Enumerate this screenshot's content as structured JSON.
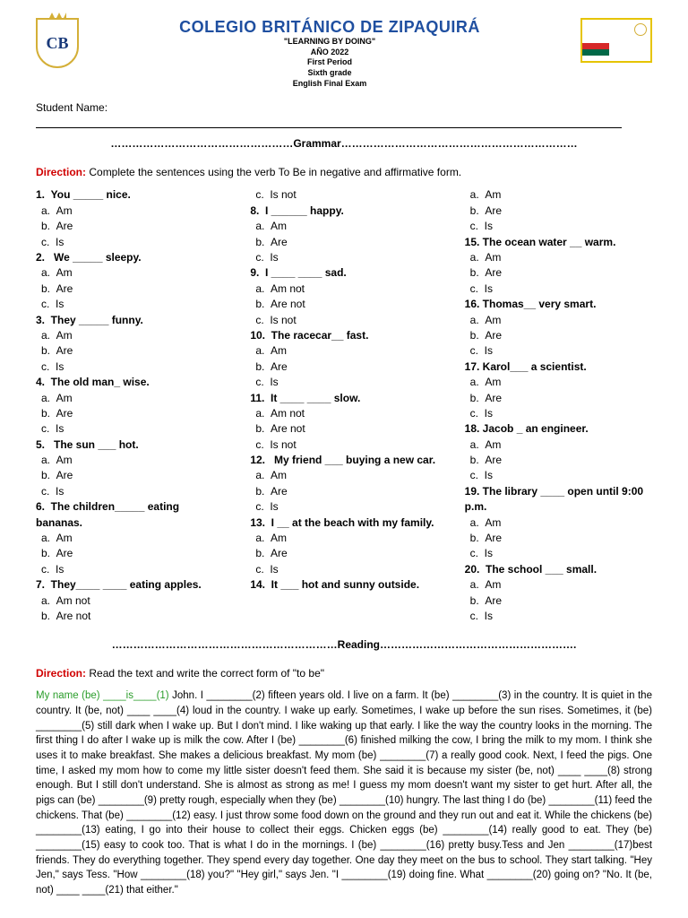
{
  "header": {
    "school_name": "COLEGIO BRITÁNICO DE ZIPAQUIRÁ",
    "motto": "\"LEARNING BY DOING\"",
    "year": "AÑO 2022",
    "period": "First Period",
    "grade": "Sixth grade",
    "exam": "English Final Exam",
    "logo_initials": "CB"
  },
  "labels": {
    "student_name": "Student Name:",
    "grammar_divider": "……………………………………………Grammar…………………………………………………………",
    "reading_divider": "………………………………………………………Reading……………………………………………….",
    "direction": "Direction:",
    "grammar_instr": "  Complete the sentences using the verb To Be in   negative and affirmative form.",
    "reading_instr": "  Read the text and write the correct form of \"to be\""
  },
  "col1": [
    {
      "n": "1.",
      "q": "You _____ nice.",
      "a": "Am",
      "b": "Are",
      "c": "Is"
    },
    {
      "n": "2.",
      "q": " We _____ sleepy.",
      "a": "Am",
      "b": "Are",
      "c": "Is"
    },
    {
      "n": "3.",
      "q": "They _____ funny.",
      "a": "Am",
      "b": "Are",
      "c": "Is"
    },
    {
      "n": "4.",
      "q": "The old man_ wise.",
      "a": "Am",
      "b": "Are",
      "c": "Is"
    },
    {
      "n": "5.",
      "q": " The sun ___ hot.",
      "a": "Am",
      "b": "Are",
      "c": "Is"
    },
    {
      "n": "6.",
      "q": "The children_____ eating bananas.",
      "a": "Am",
      "b": "Are",
      "c": "Is"
    },
    {
      "n": "7.",
      "q": "They____ ____ eating apples.",
      "a": "Am  not",
      "b": "Are not"
    }
  ],
  "col2": [
    {
      "pre_c": "Is not"
    },
    {
      "n": "8.",
      "q": "I  ______ happy.",
      "a": "Am",
      "b": "Are",
      "c": "Is"
    },
    {
      "n": "9.",
      "q": "I ____ ____ sad.",
      "a": "Am not",
      "b": "Are not",
      "c": "Is not"
    },
    {
      "n": "10.",
      "q": "The racecar__ fast.",
      "a": "Am",
      "b": "Are",
      "c": "Is"
    },
    {
      "n": "11.",
      "q": "It  ____ ____ slow.",
      "a": "Am not",
      "b": "Are not",
      "c": "Is not"
    },
    {
      "n": "12.",
      "q": " My friend  ___ buying a new car.",
      "a": "Am",
      "b": "Are",
      "c": "Is"
    },
    {
      "n": "13.",
      "q": "I __ at the beach with my family.",
      "a": "Am",
      "b": "Are",
      "c": "Is"
    },
    {
      "n": "14.",
      "q": "It ___ hot and sunny outside."
    }
  ],
  "col3": [
    {
      "a": "Am",
      "b": "Are",
      "c": "Is"
    },
    {
      "n": "15.",
      "q": "The ocean water __ warm.",
      "a": "Am",
      "b": "Are",
      "c": "Is"
    },
    {
      "n": "16.",
      "q": "Thomas__ very smart.",
      "a": "Am",
      "b": "Are",
      "c": "Is"
    },
    {
      "n": "17.",
      "q": "Karol___ a scientist.",
      "a": "Am",
      "b": "Are",
      "c": "Is"
    },
    {
      "n": "18.",
      "q": "Jacob _ an engineer.",
      "a": "Am",
      "b": "Are",
      "c": "Is"
    },
    {
      "n": "19.",
      "q": "The library  ____ open until 9:00 p.m.",
      "a": "Am",
      "b": "Are",
      "c": "Is"
    },
    {
      "n": "20.",
      "q": " The school  ___ small.",
      "a": "Am",
      "b": "Are",
      "c": "Is"
    }
  ],
  "reading": {
    "green_lead": "My name (be) ____is____(1)",
    "body": " John. I  ________(2) fifteen years old. I live on a farm. It (be) ________(3) in the country. It is quiet in the country. It (be, not) ____ ____(4) loud in the country. I wake up early. Sometimes, I wake up before the sun rises. Sometimes, it (be) ________(5) still dark when I wake up. But I don't mind. I like waking up that early. I like the way the country looks in the morning. The first thing I do after I wake up is milk the cow. After I (be) ________(6) finished milking the cow, I bring the milk to my mom. I think she uses it to make breakfast. She makes a delicious breakfast. My mom (be) ________(7) a really good cook. Next, I feed the pigs. One time, I asked my mom how to come my little sister doesn't feed them. She said it is because my sister (be, not) ____ ____(8) strong enough. But I still don't understand. She is almost as strong as me! I guess my mom doesn't want my sister to get hurt. After all, the pigs can (be) ________(9) pretty rough, especially when they (be) ________(10) hungry. The last thing I do (be) ________(11) feed the chickens. That (be) ________(12) easy. I just throw some food down on the ground and they run out and eat it. While the chickens (be) ________(13) eating, I go into their house to collect their eggs. Chicken eggs (be) ________(14) really good to eat. They (be) ________(15) easy to cook too. That is what I do in the mornings. I (be) ________(16) pretty busy.Tess and Jen ________(17)best friends. They do everything together. They spend every day together. One day they meet on the bus to school. They start talking. \"Hey Jen,\" says Tess. \"How ________(18) you?\" \"Hey girl,\" says Jen. \"I ________(19) doing fine. What ________(20) going on? \"No. It (be, not) ____ ____(21) that either.\""
  }
}
